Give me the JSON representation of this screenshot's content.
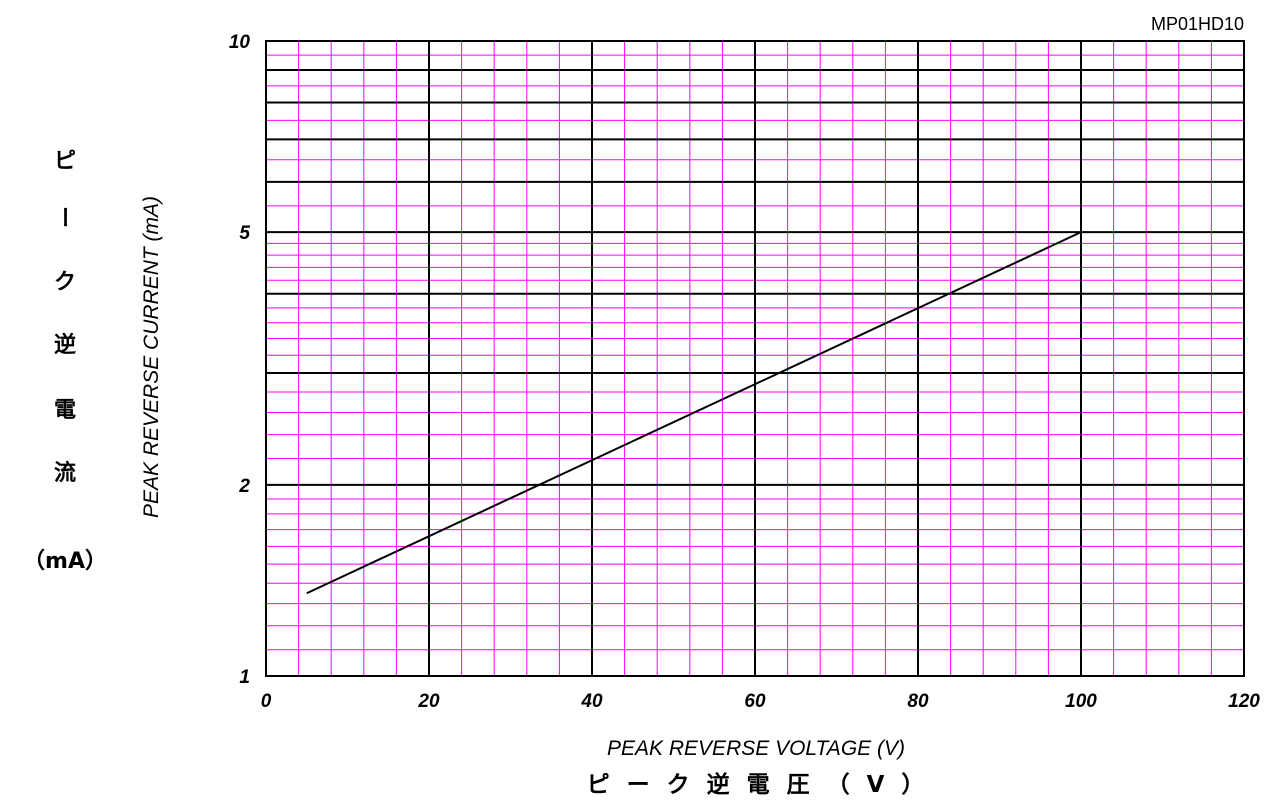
{
  "chart_data": {
    "type": "line",
    "model_code": "MP01HD10",
    "xlabel": "PEAK REVERSE VOLTAGE (V)",
    "xlabel_jp": "ピーク逆電圧（V）",
    "ylabel": "PEAK REVERSE CURRENT (mA)",
    "ylabel_jp": [
      "ピ",
      "ー",
      "ク",
      "逆",
      "電",
      "流",
      "（mA）"
    ],
    "xlim": [
      0,
      120
    ],
    "ylim": [
      1,
      10
    ],
    "y_scale": "log",
    "x_ticks": [
      "0",
      "20",
      "40",
      "60",
      "80",
      "100",
      "120"
    ],
    "y_ticks": [
      {
        "value": 1,
        "label": "1"
      },
      {
        "value": 2,
        "label": "2"
      },
      {
        "value": 5,
        "label": "5"
      },
      {
        "value": 10,
        "label": "10"
      }
    ],
    "grid": true,
    "colors": {
      "minor_grid": "#ff00ff",
      "major_grid": "#000000",
      "line": "#000000"
    },
    "series": [
      {
        "x": [
          5,
          100
        ],
        "y": [
          1.35,
          5
        ]
      }
    ]
  }
}
